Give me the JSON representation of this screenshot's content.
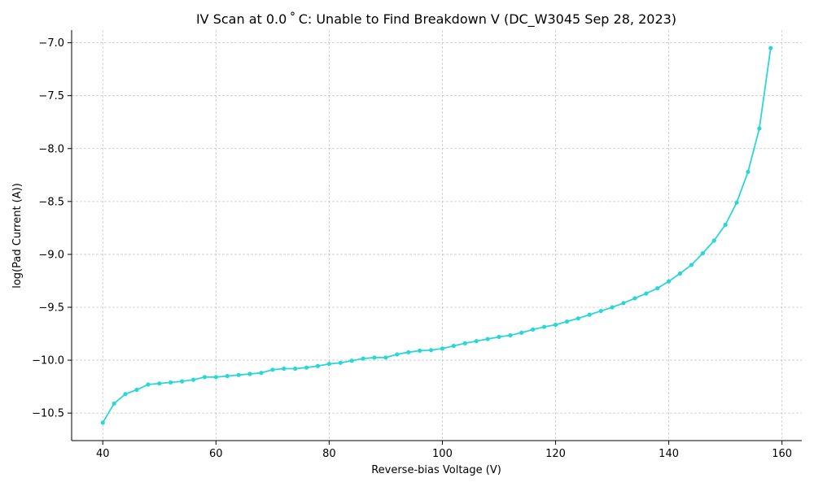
{
  "chart_data": {
    "type": "line",
    "title": "IV Scan at 0.0$^\\circ$C: Unable to Find Breakdown V (DC_W3045 Sep 28, 2023)",
    "title_display": "IV Scan at 0.0 ˚ C: Unable to Find Breakdown V (DC_W3045 Sep 28, 2023)",
    "xlabel": "Reverse-bias Voltage (V)",
    "ylabel": "log(Pad Current (A))",
    "xlim": [
      34.5,
      163.5
    ],
    "ylim": [
      -10.76,
      -6.88
    ],
    "x_ticks": [
      40,
      60,
      80,
      100,
      120,
      140,
      160
    ],
    "x_tick_labels": [
      "40",
      "60",
      "80",
      "100",
      "120",
      "140",
      "160"
    ],
    "y_ticks": [
      -7.0,
      -7.5,
      -8.0,
      -8.5,
      -9.0,
      -9.5,
      -10.0,
      -10.5
    ],
    "y_tick_labels": [
      "−7.0",
      "−7.5",
      "−8.0",
      "−8.5",
      "−9.0",
      "−9.5",
      "−10.0",
      "−10.5"
    ],
    "grid": true,
    "line_color": "#2ad7d7",
    "series": [
      {
        "x": [
          40,
          42,
          44,
          46,
          48,
          50,
          52,
          54,
          56,
          58,
          60,
          62,
          64,
          66,
          68,
          70,
          72,
          74,
          76,
          78,
          80,
          82,
          84,
          86,
          88,
          90,
          92,
          94,
          96,
          98,
          100,
          102,
          104,
          106,
          108,
          110,
          112,
          114,
          116,
          118,
          120,
          122,
          124,
          126,
          128,
          130,
          132,
          134,
          136,
          138,
          140,
          142,
          144,
          146,
          148,
          150,
          152,
          154,
          156,
          158
        ],
        "y": [
          -10.59,
          -10.41,
          -10.32,
          -10.28,
          -10.23,
          -10.22,
          -10.21,
          -10.2,
          -10.185,
          -10.16,
          -10.16,
          -10.15,
          -10.14,
          -10.13,
          -10.12,
          -10.09,
          -10.08,
          -10.08,
          -10.07,
          -10.055,
          -10.035,
          -10.025,
          -10.005,
          -9.985,
          -9.975,
          -9.975,
          -9.945,
          -9.925,
          -9.91,
          -9.905,
          -9.89,
          -9.865,
          -9.84,
          -9.82,
          -9.8,
          -9.78,
          -9.765,
          -9.74,
          -9.71,
          -9.685,
          -9.665,
          -9.635,
          -9.605,
          -9.57,
          -9.535,
          -9.5,
          -9.46,
          -9.415,
          -9.37,
          -9.32,
          -9.255,
          -9.18,
          -9.1,
          -8.99,
          -8.87,
          -8.72,
          -8.51,
          -8.22,
          -7.81,
          -7.05
        ]
      }
    ]
  }
}
